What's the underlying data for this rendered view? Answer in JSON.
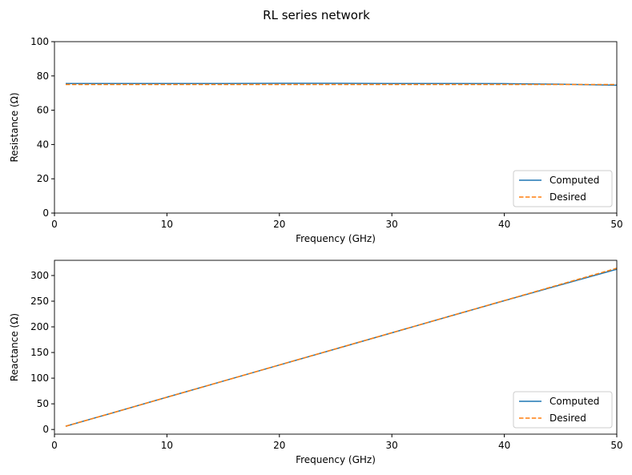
{
  "title": "RL series network",
  "colors": {
    "computed": "#1f77b4",
    "desired": "#ff7f0e"
  },
  "chart_data": [
    {
      "type": "line",
      "xlabel": "Frequency (GHz)",
      "ylabel": "Resistance (Ω)",
      "xlim": [
        0,
        50
      ],
      "ylim": [
        0,
        100
      ],
      "xticks": [
        0,
        10,
        20,
        30,
        40,
        50
      ],
      "yticks": [
        0,
        20,
        40,
        60,
        80,
        100
      ],
      "grid": false,
      "legend": "lower-right",
      "x": [
        1,
        5,
        10,
        15,
        20,
        25,
        30,
        35,
        40,
        45,
        50
      ],
      "series": [
        {
          "name": "Computed",
          "style": "solid",
          "values": [
            75.6,
            75.6,
            75.6,
            75.6,
            75.7,
            75.7,
            75.6,
            75.6,
            75.5,
            75.2,
            74.6
          ]
        },
        {
          "name": "Desired",
          "style": "dashed",
          "values": [
            75,
            75,
            75,
            75,
            75,
            75,
            75,
            75,
            75,
            75,
            75
          ]
        }
      ]
    },
    {
      "type": "line",
      "xlabel": "Frequency (GHz)",
      "ylabel": "Reactance (Ω)",
      "xlim": [
        0,
        50
      ],
      "ylim": [
        -9.1,
        329.6
      ],
      "xticks": [
        0,
        10,
        20,
        30,
        40,
        50
      ],
      "yticks": [
        0,
        50,
        100,
        150,
        200,
        250,
        300
      ],
      "grid": false,
      "legend": "lower-right",
      "x": [
        1,
        5,
        10,
        15,
        20,
        25,
        30,
        35,
        40,
        45,
        50
      ],
      "series": [
        {
          "name": "Computed",
          "style": "solid",
          "values": [
            6.3,
            31.4,
            62.8,
            94.2,
            125.6,
            157.0,
            188.4,
            219.7,
            250.9,
            281.8,
            312.3
          ]
        },
        {
          "name": "Desired",
          "style": "dashed",
          "values": [
            6.3,
            31.4,
            62.8,
            94.2,
            125.7,
            157.1,
            188.5,
            219.9,
            251.3,
            282.7,
            314.2
          ]
        }
      ]
    }
  ]
}
